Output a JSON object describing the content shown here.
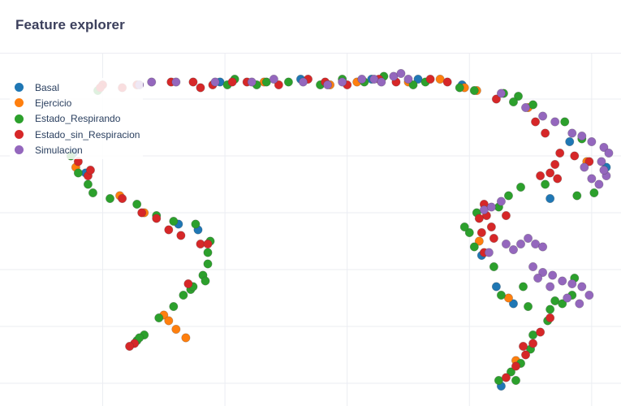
{
  "header": {
    "title": "Feature explorer"
  },
  "legend_position": "top-left",
  "chart_data": {
    "type": "scatter",
    "title": "",
    "xlabel": "",
    "ylabel": "",
    "grid": true,
    "xlim": [
      -6.2,
      19.2
    ],
    "ylim": [
      -4.8,
      7.6
    ],
    "x_gridlines": [
      -2,
      3,
      8,
      13,
      18
    ],
    "y_gridlines": [
      -4,
      -2,
      0,
      2,
      4,
      6
    ],
    "series": [
      {
        "name": "Basal",
        "color": "#1f77b4",
        "points": [
          [
            2.8,
            6.6
          ],
          [
            6.1,
            6.7
          ],
          [
            -3.2,
            4.1
          ],
          [
            -2.7,
            3.4
          ],
          [
            1.1,
            1.6
          ],
          [
            1.9,
            1.4
          ],
          [
            9.0,
            6.7
          ],
          [
            10.9,
            6.7
          ],
          [
            14.1,
            -0.6
          ],
          [
            14.8,
            -1.2
          ],
          [
            13.5,
            0.5
          ],
          [
            16.3,
            2.5
          ],
          [
            17.1,
            4.5
          ],
          [
            18.6,
            3.6
          ],
          [
            14.3,
            -4.1
          ],
          [
            12.7,
            6.5
          ]
        ]
      },
      {
        "name": "Ejercicio",
        "color": "#ff7f0e",
        "points": [
          [
            -3.1,
            3.6
          ],
          [
            -1.3,
            2.6
          ],
          [
            -0.3,
            2.0
          ],
          [
            0.5,
            -1.6
          ],
          [
            1.0,
            -2.1
          ],
          [
            1.4,
            -2.4
          ],
          [
            0.7,
            -1.8
          ],
          [
            4.6,
            6.6
          ],
          [
            7.3,
            6.5
          ],
          [
            8.4,
            6.6
          ],
          [
            10.5,
            6.6
          ],
          [
            11.8,
            6.7
          ],
          [
            12.8,
            6.4
          ],
          [
            13.3,
            6.3
          ],
          [
            15.4,
            5.7
          ],
          [
            13.4,
            1.0
          ],
          [
            14.6,
            -1.0
          ],
          [
            17.8,
            3.8
          ],
          [
            14.9,
            -3.2
          ]
        ]
      },
      {
        "name": "Estado_Respirando",
        "color": "#2ca02c",
        "points": [
          [
            -3.3,
            4.0
          ],
          [
            -3.0,
            3.4
          ],
          [
            -2.6,
            3.0
          ],
          [
            -2.4,
            2.7
          ],
          [
            -1.7,
            2.5
          ],
          [
            -0.6,
            2.3
          ],
          [
            0.2,
            1.9
          ],
          [
            0.9,
            1.7
          ],
          [
            1.8,
            1.6
          ],
          [
            2.4,
            1.0
          ],
          [
            2.3,
            0.6
          ],
          [
            2.1,
            -0.2
          ],
          [
            1.6,
            -0.7
          ],
          [
            1.3,
            -0.9
          ],
          [
            0.9,
            -1.3
          ],
          [
            0.3,
            -1.7
          ],
          [
            -0.3,
            -2.3
          ],
          [
            -0.6,
            -2.5
          ],
          [
            1.7,
            -0.6
          ],
          [
            2.3,
            0.2
          ],
          [
            2.2,
            -0.4
          ],
          [
            -0.5,
            -2.4
          ],
          [
            3.1,
            6.5
          ],
          [
            3.4,
            6.7
          ],
          [
            4.3,
            6.5
          ],
          [
            4.7,
            6.6
          ],
          [
            5.6,
            6.6
          ],
          [
            6.9,
            6.5
          ],
          [
            7.8,
            6.7
          ],
          [
            8.7,
            6.6
          ],
          [
            9.5,
            6.8
          ],
          [
            10.7,
            6.5
          ],
          [
            11.2,
            6.6
          ],
          [
            12.6,
            6.4
          ],
          [
            13.2,
            6.3
          ],
          [
            14.4,
            6.2
          ],
          [
            15.0,
            6.1
          ],
          [
            14.8,
            5.9
          ],
          [
            15.6,
            5.8
          ],
          [
            16.9,
            5.2
          ],
          [
            17.6,
            4.6
          ],
          [
            17.4,
            2.6
          ],
          [
            18.1,
            2.7
          ],
          [
            16.1,
            3.0
          ],
          [
            14.2,
            2.2
          ],
          [
            14.6,
            2.6
          ],
          [
            15.1,
            2.9
          ],
          [
            13.3,
            2.0
          ],
          [
            13.0,
            1.3
          ],
          [
            13.2,
            0.8
          ],
          [
            12.8,
            1.5
          ],
          [
            14.0,
            0.1
          ],
          [
            15.2,
            -0.6
          ],
          [
            14.3,
            -0.9
          ],
          [
            15.4,
            -1.3
          ],
          [
            16.5,
            -1.1
          ],
          [
            17.3,
            -0.3
          ],
          [
            17.2,
            -0.9
          ],
          [
            16.2,
            -1.8
          ],
          [
            15.6,
            -2.3
          ],
          [
            15.5,
            -2.8
          ],
          [
            15.1,
            -3.3
          ],
          [
            14.7,
            -3.6
          ],
          [
            14.2,
            -3.9
          ],
          [
            14.9,
            -3.9
          ],
          [
            16.3,
            -1.4
          ],
          [
            16.8,
            -1.2
          ],
          [
            -2.2,
            6.3
          ]
        ]
      },
      {
        "name": "Estado_sin_Respiracion",
        "color": "#d62728",
        "points": [
          [
            -2.0,
            6.5
          ],
          [
            -1.2,
            6.4
          ],
          [
            -0.6,
            6.5
          ],
          [
            0.8,
            6.6
          ],
          [
            1.7,
            6.6
          ],
          [
            2.5,
            6.5
          ],
          [
            3.3,
            6.6
          ],
          [
            3.9,
            6.6
          ],
          [
            5.2,
            6.5
          ],
          [
            6.4,
            6.7
          ],
          [
            7.1,
            6.6
          ],
          [
            8.0,
            6.5
          ],
          [
            9.3,
            6.7
          ],
          [
            10.0,
            6.6
          ],
          [
            11.4,
            6.7
          ],
          [
            12.1,
            6.6
          ],
          [
            14.1,
            6.0
          ],
          [
            15.7,
            5.2
          ],
          [
            16.1,
            4.8
          ],
          [
            16.7,
            4.1
          ],
          [
            16.5,
            3.7
          ],
          [
            16.6,
            3.2
          ],
          [
            15.9,
            3.3
          ],
          [
            16.3,
            3.4
          ],
          [
            17.3,
            4.0
          ],
          [
            17.9,
            3.8
          ],
          [
            13.7,
            1.9
          ],
          [
            13.9,
            1.5
          ],
          [
            13.5,
            1.3
          ],
          [
            13.4,
            1.8
          ],
          [
            13.6,
            0.6
          ],
          [
            14.0,
            1.1
          ],
          [
            14.5,
            1.9
          ],
          [
            13.6,
            2.3
          ],
          [
            16.3,
            -1.7
          ],
          [
            15.9,
            -2.2
          ],
          [
            15.6,
            -2.6
          ],
          [
            15.3,
            -3.0
          ],
          [
            14.9,
            -3.4
          ],
          [
            14.5,
            -3.8
          ],
          [
            15.2,
            -2.7
          ],
          [
            -1.2,
            2.5
          ],
          [
            -0.4,
            2.0
          ],
          [
            0.2,
            1.8
          ],
          [
            0.7,
            1.4
          ],
          [
            1.2,
            1.2
          ],
          [
            2.0,
            0.9
          ],
          [
            2.3,
            0.9
          ],
          [
            1.5,
            -0.5
          ],
          [
            -0.7,
            -2.6
          ],
          [
            -0.9,
            -2.7
          ],
          [
            -2.6,
            3.3
          ],
          [
            -2.5,
            3.5
          ],
          [
            -3.0,
            3.8
          ],
          [
            -2.1,
            6.4
          ],
          [
            2.0,
            6.4
          ]
        ]
      },
      {
        "name": "Simulacion",
        "color": "#9467bd",
        "points": [
          [
            0.0,
            6.6
          ],
          [
            1.0,
            6.6
          ],
          [
            2.6,
            6.6
          ],
          [
            4.1,
            6.6
          ],
          [
            5.0,
            6.7
          ],
          [
            6.2,
            6.6
          ],
          [
            7.2,
            6.5
          ],
          [
            7.8,
            6.6
          ],
          [
            8.6,
            6.7
          ],
          [
            9.1,
            6.7
          ],
          [
            9.4,
            6.6
          ],
          [
            9.9,
            6.8
          ],
          [
            10.2,
            6.9
          ],
          [
            10.5,
            6.7
          ],
          [
            14.3,
            6.2
          ],
          [
            15.3,
            5.7
          ],
          [
            16.0,
            5.4
          ],
          [
            16.5,
            5.2
          ],
          [
            17.2,
            4.8
          ],
          [
            17.6,
            4.7
          ],
          [
            18.0,
            4.5
          ],
          [
            18.5,
            4.3
          ],
          [
            18.7,
            4.1
          ],
          [
            18.4,
            3.8
          ],
          [
            18.6,
            3.3
          ],
          [
            18.3,
            3.0
          ],
          [
            18.0,
            3.2
          ],
          [
            17.7,
            3.6
          ],
          [
            18.5,
            3.5
          ],
          [
            13.6,
            2.1
          ],
          [
            13.9,
            2.2
          ],
          [
            14.3,
            2.4
          ],
          [
            14.8,
            0.7
          ],
          [
            15.1,
            0.9
          ],
          [
            15.4,
            1.1
          ],
          [
            15.7,
            0.9
          ],
          [
            16.0,
            0.8
          ],
          [
            14.5,
            0.9
          ],
          [
            13.8,
            0.6
          ],
          [
            15.6,
            0.1
          ],
          [
            16.0,
            -0.1
          ],
          [
            16.4,
            -0.2
          ],
          [
            16.8,
            -0.4
          ],
          [
            17.2,
            -0.5
          ],
          [
            17.6,
            -0.6
          ],
          [
            17.9,
            -0.9
          ],
          [
            17.5,
            -1.2
          ],
          [
            17.0,
            -1.0
          ],
          [
            -0.5,
            6.5
          ],
          [
            16.3,
            -0.6
          ],
          [
            15.8,
            -0.3
          ]
        ]
      }
    ]
  }
}
